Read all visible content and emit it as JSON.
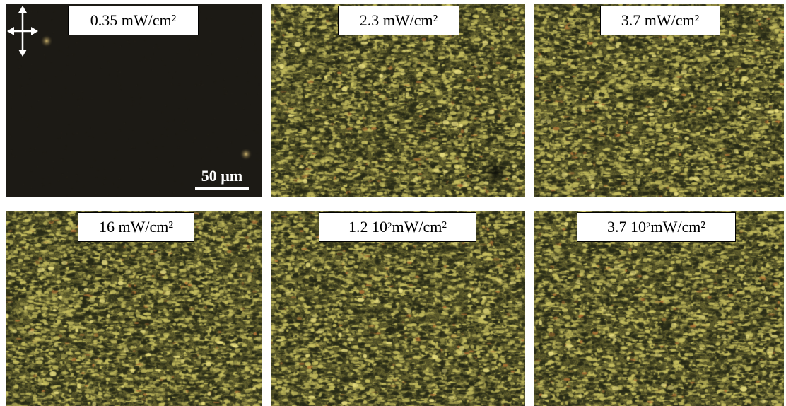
{
  "figure": {
    "panels": [
      {
        "id": "p1",
        "label_main": "0.35 mW/cm²",
        "label_exp": "",
        "label_unit": "",
        "texture": "dark"
      },
      {
        "id": "p2",
        "label_main": "2.3 mW/cm²",
        "label_exp": "",
        "label_unit": "",
        "texture": "bright"
      },
      {
        "id": "p3",
        "label_main": "3.7 mW/cm²",
        "label_exp": "",
        "label_unit": "",
        "texture": "bright"
      },
      {
        "id": "p4",
        "label_main": "16 mW/cm²",
        "label_exp": "",
        "label_unit": "",
        "texture": "bright"
      },
      {
        "id": "p5",
        "label_main": "1.2 10",
        "label_exp": "2",
        "label_unit": " mW/cm²",
        "texture": "bright"
      },
      {
        "id": "p6",
        "label_main": "3.7 10",
        "label_exp": "2",
        "label_unit": " mW/cm²",
        "texture": "bright"
      }
    ],
    "scale_bar_text": "50 µm",
    "polarizer_icon": "crossed-polarizers-arrows-icon",
    "colors": {
      "dark_background": "#1c1a15",
      "texture_light": "#c8c060",
      "texture_dark": "#2b2c1c",
      "highlight_orange": "#b87838",
      "label_background": "#ffffff",
      "label_border": "#000000"
    }
  }
}
